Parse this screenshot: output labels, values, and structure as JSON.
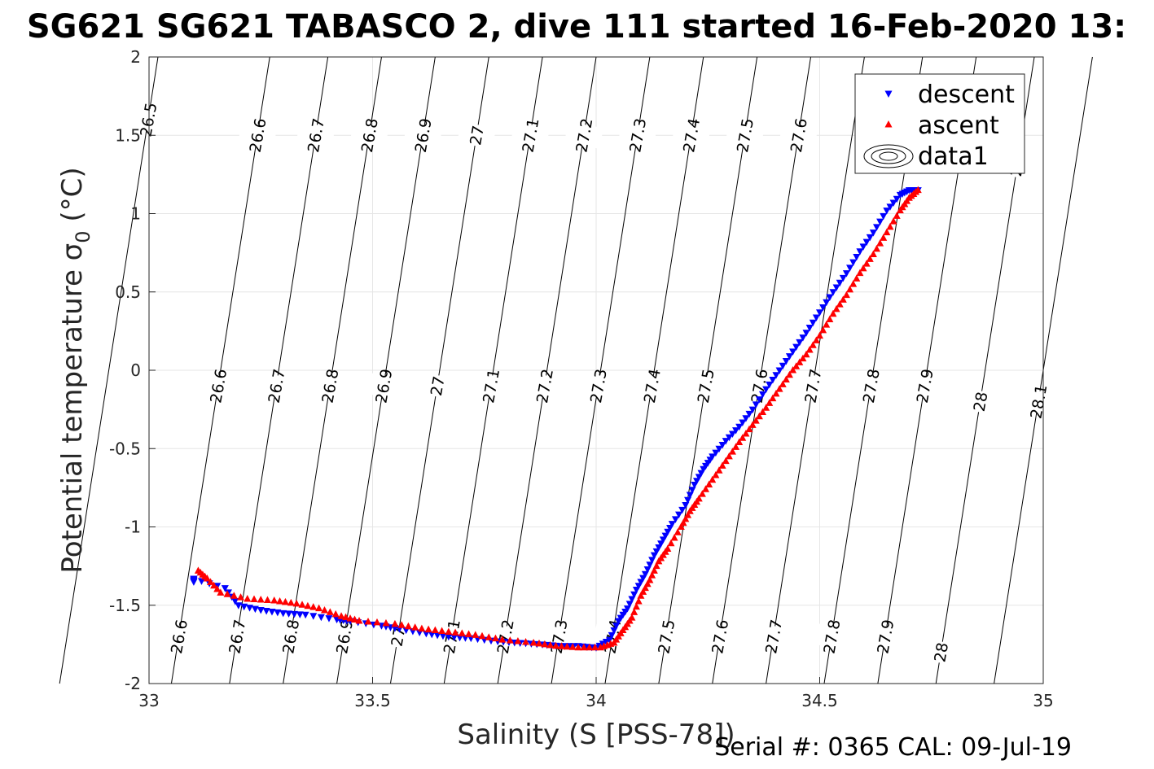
{
  "chart_data": {
    "type": "scatter",
    "title": "SG621 SG621 TABASCO 2, dive 111 started 16-Feb-2020 13:",
    "xlabel": "Salinity (S [PSS-78])",
    "ylabel": "Potential temperature σ",
    "ylabel_sub": "0",
    "ylabel_unit": " (°C)",
    "xlim": [
      33,
      35
    ],
    "ylim": [
      -2,
      2
    ],
    "xticks": [
      "33",
      "33.5",
      "34",
      "34.5",
      "35"
    ],
    "yticks": [
      "2",
      "1.5",
      "1",
      "0.5",
      "0",
      "-0.5",
      "-1",
      "-1.5",
      "-2"
    ],
    "grid": true,
    "legend_position": "top-right",
    "legend": [
      {
        "name": "descent",
        "marker": "triangle-down",
        "color": "#0000ff"
      },
      {
        "name": "ascent",
        "marker": "triangle-up",
        "color": "#ff0000"
      },
      {
        "name": "data1",
        "marker": "contour-ellipses",
        "color": "#000000"
      }
    ],
    "series": [
      {
        "name": "descent",
        "color": "#0000ff",
        "marker": "triangle-down",
        "points": [
          [
            33.1,
            -1.35
          ],
          [
            33.1,
            -1.33
          ],
          [
            33.17,
            -1.39
          ],
          [
            33.2,
            -1.5
          ],
          [
            33.25,
            -1.53
          ],
          [
            33.3,
            -1.55
          ],
          [
            33.35,
            -1.56
          ],
          [
            33.42,
            -1.59
          ],
          [
            33.45,
            -1.6
          ],
          [
            33.52,
            -1.63
          ],
          [
            33.56,
            -1.65
          ],
          [
            33.62,
            -1.68
          ],
          [
            33.67,
            -1.7
          ],
          [
            33.72,
            -1.71
          ],
          [
            33.78,
            -1.73
          ],
          [
            33.83,
            -1.74
          ],
          [
            33.88,
            -1.75
          ],
          [
            33.92,
            -1.76
          ],
          [
            33.96,
            -1.76
          ],
          [
            34.0,
            -1.77
          ],
          [
            34.03,
            -1.72
          ],
          [
            34.05,
            -1.6
          ],
          [
            34.07,
            -1.52
          ],
          [
            34.09,
            -1.4
          ],
          [
            34.11,
            -1.3
          ],
          [
            34.13,
            -1.18
          ],
          [
            34.15,
            -1.08
          ],
          [
            34.17,
            -0.98
          ],
          [
            34.2,
            -0.86
          ],
          [
            34.22,
            -0.73
          ],
          [
            34.24,
            -0.63
          ],
          [
            34.26,
            -0.55
          ],
          [
            34.29,
            -0.45
          ],
          [
            34.32,
            -0.36
          ],
          [
            34.35,
            -0.25
          ],
          [
            34.38,
            -0.12
          ],
          [
            34.41,
            0.0
          ],
          [
            34.44,
            0.12
          ],
          [
            34.47,
            0.24
          ],
          [
            34.5,
            0.37
          ],
          [
            34.53,
            0.5
          ],
          [
            34.56,
            0.62
          ],
          [
            34.59,
            0.76
          ],
          [
            34.62,
            0.88
          ],
          [
            34.65,
            1.02
          ],
          [
            34.68,
            1.12
          ],
          [
            34.7,
            1.15
          ],
          [
            34.72,
            1.15
          ]
        ]
      },
      {
        "name": "ascent",
        "color": "#ff0000",
        "marker": "triangle-up",
        "points": [
          [
            33.11,
            -1.28
          ],
          [
            33.13,
            -1.33
          ],
          [
            33.16,
            -1.42
          ],
          [
            33.22,
            -1.46
          ],
          [
            33.28,
            -1.47
          ],
          [
            33.33,
            -1.49
          ],
          [
            33.38,
            -1.52
          ],
          [
            33.43,
            -1.57
          ],
          [
            33.47,
            -1.6
          ],
          [
            33.55,
            -1.62
          ],
          [
            33.61,
            -1.65
          ],
          [
            33.67,
            -1.67
          ],
          [
            33.73,
            -1.69
          ],
          [
            33.79,
            -1.72
          ],
          [
            33.86,
            -1.74
          ],
          [
            33.91,
            -1.76
          ],
          [
            33.96,
            -1.77
          ],
          [
            34.01,
            -1.77
          ],
          [
            34.04,
            -1.74
          ],
          [
            34.06,
            -1.66
          ],
          [
            34.08,
            -1.58
          ],
          [
            34.1,
            -1.44
          ],
          [
            34.12,
            -1.34
          ],
          [
            34.14,
            -1.22
          ],
          [
            34.16,
            -1.14
          ],
          [
            34.19,
            -1.0
          ],
          [
            34.21,
            -0.9
          ],
          [
            34.23,
            -0.82
          ],
          [
            34.26,
            -0.7
          ],
          [
            34.29,
            -0.58
          ],
          [
            34.32,
            -0.46
          ],
          [
            34.35,
            -0.35
          ],
          [
            34.38,
            -0.24
          ],
          [
            34.41,
            -0.12
          ],
          [
            34.44,
            0.0
          ],
          [
            34.47,
            0.1
          ],
          [
            34.5,
            0.22
          ],
          [
            34.53,
            0.36
          ],
          [
            34.56,
            0.48
          ],
          [
            34.59,
            0.62
          ],
          [
            34.62,
            0.74
          ],
          [
            34.65,
            0.88
          ],
          [
            34.68,
            1.02
          ],
          [
            34.7,
            1.1
          ],
          [
            34.72,
            1.15
          ]
        ]
      }
    ],
    "contour_lines": [
      {
        "level": "26.5",
        "x_at_bottom": 32.8,
        "label_y": 1.6
      },
      {
        "level": "26.5",
        "x_at_bottom": 32.8,
        "label_y": 0.05
      },
      {
        "level": "26.6",
        "x_at_bottom": 33.05,
        "label_y": 1.5
      },
      {
        "level": "26.6",
        "x_at_bottom": 33.05,
        "label_y": -0.1
      },
      {
        "level": "26.6",
        "x_at_bottom": 33.05,
        "label_y": -1.7
      },
      {
        "level": "26.7",
        "x_at_bottom": 33.18,
        "label_y": 1.5
      },
      {
        "level": "26.7",
        "x_at_bottom": 33.18,
        "label_y": -0.1
      },
      {
        "level": "26.7",
        "x_at_bottom": 33.18,
        "label_y": -1.7
      },
      {
        "level": "26.8",
        "x_at_bottom": 33.3,
        "label_y": 1.5
      },
      {
        "level": "26.8",
        "x_at_bottom": 33.3,
        "label_y": -0.1
      },
      {
        "level": "26.8",
        "x_at_bottom": 33.3,
        "label_y": -1.7
      },
      {
        "level": "26.9",
        "x_at_bottom": 33.42,
        "label_y": 1.5
      },
      {
        "level": "26.9",
        "x_at_bottom": 33.42,
        "label_y": -0.1
      },
      {
        "level": "26.9",
        "x_at_bottom": 33.42,
        "label_y": -1.7
      },
      {
        "level": "27",
        "x_at_bottom": 33.54,
        "label_y": 1.5
      },
      {
        "level": "27",
        "x_at_bottom": 33.54,
        "label_y": -0.1
      },
      {
        "level": "27",
        "x_at_bottom": 33.54,
        "label_y": -1.7
      },
      {
        "level": "27.1",
        "x_at_bottom": 33.66,
        "label_y": 1.5
      },
      {
        "level": "27.1",
        "x_at_bottom": 33.66,
        "label_y": -0.1
      },
      {
        "level": "27.1",
        "x_at_bottom": 33.66,
        "label_y": -1.7
      },
      {
        "level": "27.2",
        "x_at_bottom": 33.78,
        "label_y": 1.5
      },
      {
        "level": "27.2",
        "x_at_bottom": 33.78,
        "label_y": -0.1
      },
      {
        "level": "27.2",
        "x_at_bottom": 33.78,
        "label_y": -1.7
      },
      {
        "level": "27.3",
        "x_at_bottom": 33.9,
        "label_y": 1.5
      },
      {
        "level": "27.3",
        "x_at_bottom": 33.9,
        "label_y": -0.1
      },
      {
        "level": "27.3",
        "x_at_bottom": 33.9,
        "label_y": -1.7
      },
      {
        "level": "27.4",
        "x_at_bottom": 34.02,
        "label_y": 1.5
      },
      {
        "level": "27.4",
        "x_at_bottom": 34.02,
        "label_y": -0.1
      },
      {
        "level": "27.4",
        "x_at_bottom": 34.02,
        "label_y": -1.7
      },
      {
        "level": "27.5",
        "x_at_bottom": 34.14,
        "label_y": 1.5
      },
      {
        "level": "27.5",
        "x_at_bottom": 34.14,
        "label_y": -0.1
      },
      {
        "level": "27.5",
        "x_at_bottom": 34.14,
        "label_y": -1.7
      },
      {
        "level": "27.6",
        "x_at_bottom": 34.26,
        "label_y": 1.5
      },
      {
        "level": "27.6",
        "x_at_bottom": 34.26,
        "label_y": -0.1
      },
      {
        "level": "27.6",
        "x_at_bottom": 34.26,
        "label_y": -1.7
      },
      {
        "level": "27.7",
        "x_at_bottom": 34.38,
        "label_y": -0.1
      },
      {
        "level": "27.7",
        "x_at_bottom": 34.38,
        "label_y": -1.7
      },
      {
        "level": "27.8",
        "x_at_bottom": 34.51,
        "label_y": -0.1
      },
      {
        "level": "27.8",
        "x_at_bottom": 34.51,
        "label_y": -1.7
      },
      {
        "level": "27.9",
        "x_at_bottom": 34.63,
        "label_y": -0.1
      },
      {
        "level": "27.9",
        "x_at_bottom": 34.63,
        "label_y": -1.7
      },
      {
        "level": "28",
        "x_at_bottom": 34.76,
        "label_y": 1.3
      },
      {
        "level": "28",
        "x_at_bottom": 34.76,
        "label_y": -0.2
      },
      {
        "level": "28",
        "x_at_bottom": 34.76,
        "label_y": -1.8
      },
      {
        "level": "28.1",
        "x_at_bottom": 34.89,
        "label_y": -0.2
      }
    ],
    "footer": "Serial #: 0365  CAL: 09-Jul-19"
  }
}
